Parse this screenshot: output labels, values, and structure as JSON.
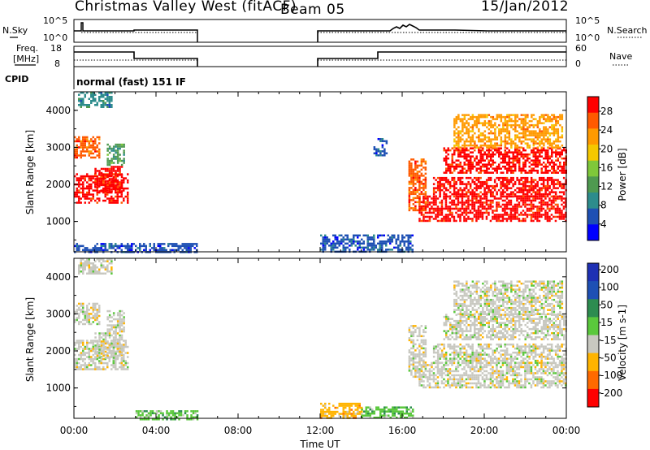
{
  "header": {
    "station": "Christmas Valley West (fitACF)",
    "beam": "Beam 05",
    "date": "15/Jan/2012"
  },
  "panels": {
    "nsky": {
      "left_label": "N.Sky",
      "right_label": "N.Search",
      "left_ticks": [
        "10^5",
        "10^0"
      ],
      "right_ticks": [
        "10^5",
        "10^0"
      ]
    },
    "freq": {
      "left_label_1": "Freq.",
      "left_label_2": "[MHz]",
      "right_label": "Nave",
      "left_ticks": [
        "18",
        "8"
      ],
      "right_ticks": [
        "60",
        "0"
      ]
    },
    "cpid": {
      "left_label": "CPID",
      "program": "normal (fast) 151 IF"
    }
  },
  "colors": {
    "power": [
      "#0000ff",
      "#1e50b4",
      "#2d8c8c",
      "#4f9a50",
      "#7fc83a",
      "#f5c800",
      "#ff9a00",
      "#ff5a00",
      "#ff0000"
    ],
    "velocity": [
      "#ff0000",
      "#ff6a00",
      "#ffb400",
      "#c8c8c0",
      "#5ac83c",
      "#2d8c50",
      "#1e50b4",
      "#1e30b4"
    ]
  },
  "chart_data": [
    {
      "type": "heatmap",
      "title": "Power",
      "ylabel": "Slant Range [km]",
      "ylim": [
        180,
        4500
      ],
      "xlim": [
        0,
        24
      ],
      "yticks": [
        "4000",
        "3000",
        "2000",
        "1000"
      ],
      "colorbar_label": "Power [dB]",
      "colorbar_ticks": [
        "28",
        "24",
        "20",
        "16",
        "12",
        "8",
        "4"
      ],
      "regions": [
        {
          "t": [
            0.0,
            2.6
          ],
          "r": [
            1500,
            2300
          ],
          "c": 8
        },
        {
          "t": [
            0.0,
            1.2
          ],
          "r": [
            2700,
            3300
          ],
          "c": 7
        },
        {
          "t": [
            1.0,
            2.3
          ],
          "r": [
            1800,
            2500
          ],
          "c": 8
        },
        {
          "t": [
            1.6,
            2.4
          ],
          "r": [
            2500,
            3100
          ],
          "c": 3
        },
        {
          "t": [
            0.2,
            1.8
          ],
          "r": [
            4100,
            4500
          ],
          "c": 2
        },
        {
          "t": [
            0.0,
            6.0
          ],
          "r": [
            180,
            420
          ],
          "c": 1
        },
        {
          "t": [
            12.0,
            16.5
          ],
          "r": [
            180,
            650
          ],
          "c": 1
        },
        {
          "t": [
            14.6,
            15.2
          ],
          "r": [
            2800,
            3250
          ],
          "c": 1
        },
        {
          "t": [
            16.3,
            17.1
          ],
          "r": [
            1300,
            2700
          ],
          "c": 7
        },
        {
          "t": [
            16.8,
            24.0
          ],
          "r": [
            1000,
            1700
          ],
          "c": 8
        },
        {
          "t": [
            17.5,
            24.0
          ],
          "r": [
            1700,
            2200
          ],
          "c": 8
        },
        {
          "t": [
            18.0,
            24.0
          ],
          "r": [
            2300,
            3000
          ],
          "c": 8
        },
        {
          "t": [
            18.5,
            23.8
          ],
          "r": [
            3000,
            3900
          ],
          "c": 6
        }
      ]
    },
    {
      "type": "heatmap",
      "title": "Velocity",
      "ylabel": "Slant Range [km]",
      "ylim": [
        180,
        4500
      ],
      "xlim": [
        0,
        24
      ],
      "xticks": [
        "00:00",
        "04:00",
        "08:00",
        "12:00",
        "16:00",
        "20:00",
        "00:00"
      ],
      "xlabel": "Time UT",
      "yticks": [
        "4000",
        "3000",
        "2000",
        "1000"
      ],
      "colorbar_label": "Velocity [m s-1]",
      "colorbar_ticks": [
        "200",
        "100",
        "50",
        "15",
        "-15",
        "-50",
        "-100",
        "-200"
      ],
      "regions": [
        {
          "t": [
            0.0,
            2.6
          ],
          "r": [
            1500,
            2300
          ],
          "c": 3
        },
        {
          "t": [
            0.0,
            1.2
          ],
          "r": [
            2700,
            3300
          ],
          "c": 3
        },
        {
          "t": [
            1.0,
            2.3
          ],
          "r": [
            1800,
            2500
          ],
          "c": 3
        },
        {
          "t": [
            1.6,
            2.4
          ],
          "r": [
            2500,
            3100
          ],
          "c": 3
        },
        {
          "t": [
            0.2,
            1.8
          ],
          "r": [
            4100,
            4500
          ],
          "c": 3
        },
        {
          "t": [
            3.0,
            6.0
          ],
          "r": [
            180,
            400
          ],
          "c": 4
        },
        {
          "t": [
            12.0,
            14.0
          ],
          "r": [
            180,
            600
          ],
          "c": 2
        },
        {
          "t": [
            14.0,
            16.5
          ],
          "r": [
            180,
            500
          ],
          "c": 4
        },
        {
          "t": [
            16.3,
            17.1
          ],
          "r": [
            1300,
            2700
          ],
          "c": 3
        },
        {
          "t": [
            16.8,
            24.0
          ],
          "r": [
            1000,
            1700
          ],
          "c": 3
        },
        {
          "t": [
            17.5,
            24.0
          ],
          "r": [
            1700,
            2200
          ],
          "c": 3
        },
        {
          "t": [
            18.0,
            24.0
          ],
          "r": [
            2300,
            3000
          ],
          "c": 3
        },
        {
          "t": [
            18.5,
            23.8
          ],
          "r": [
            3000,
            3900
          ],
          "c": 3
        }
      ]
    }
  ]
}
